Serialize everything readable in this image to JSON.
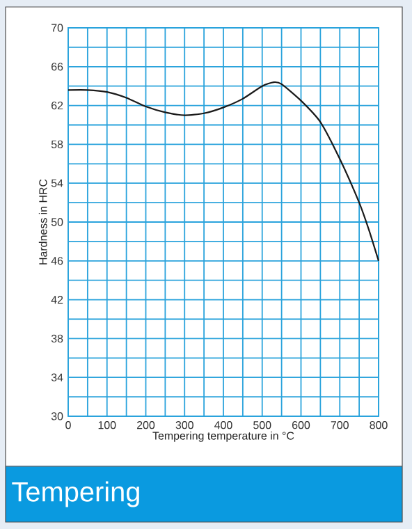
{
  "chart_data": {
    "type": "line",
    "xlabel": "Tempering temperature in °C",
    "ylabel": "Hardness in HRC",
    "x": [
      0,
      50,
      100,
      150,
      200,
      250,
      300,
      350,
      400,
      450,
      500,
      530,
      550,
      600,
      650,
      700,
      750,
      775,
      800
    ],
    "series": [
      {
        "color": "#1a1a1a",
        "values": [
          63.6,
          63.6,
          63.4,
          62.8,
          61.9,
          61.3,
          61.0,
          61.2,
          61.8,
          62.7,
          64.0,
          64.4,
          64.2,
          62.5,
          60.3,
          56.5,
          52.0,
          49.2,
          46.0
        ]
      }
    ],
    "xlim": [
      0,
      800
    ],
    "xticks": [
      0,
      100,
      200,
      300,
      400,
      500,
      600,
      700,
      800
    ],
    "ylim": [
      30,
      70
    ],
    "yticks": [
      30,
      34,
      38,
      42,
      46,
      50,
      54,
      58,
      62,
      66,
      70
    ],
    "grid": true,
    "marker": "none",
    "annotations": [
      "Tempering"
    ]
  }
}
